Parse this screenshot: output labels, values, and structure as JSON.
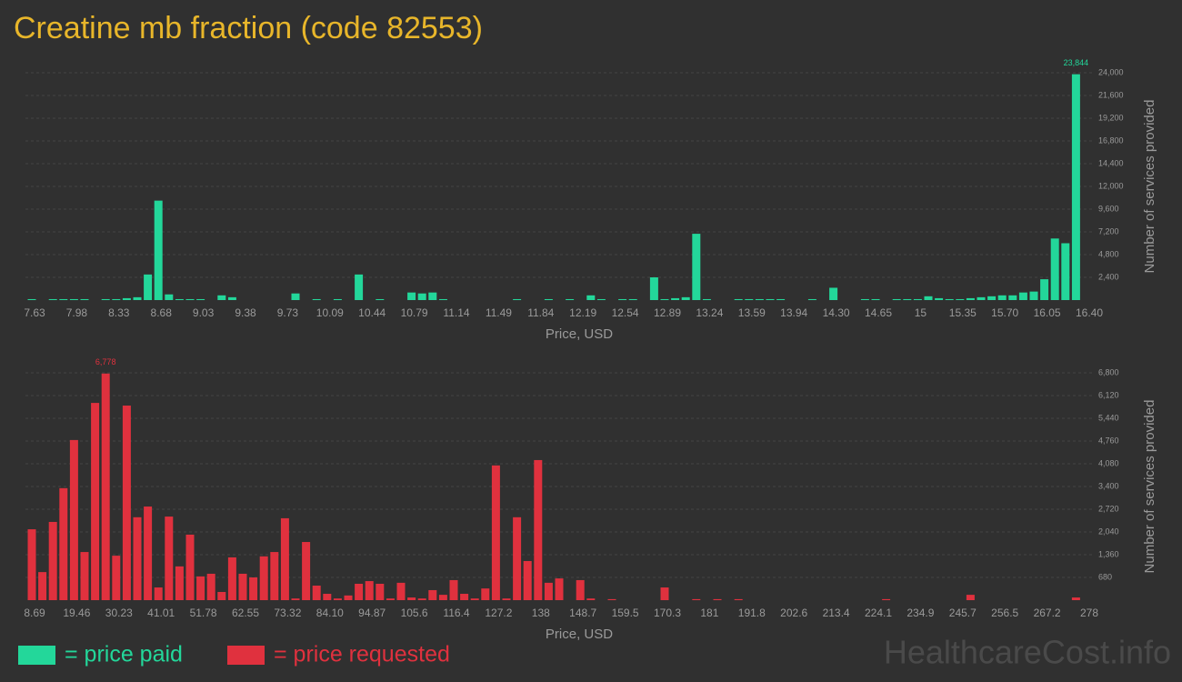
{
  "title": "Creatine mb fraction (code 82553)",
  "watermark": "HealthcareCost.info",
  "chart_data": [
    {
      "type": "bar",
      "x_label": "Price, USD",
      "y_label": "Number of services provided",
      "grid": true,
      "categories": [
        "7.63",
        null,
        null,
        null,
        "7.98",
        null,
        null,
        null,
        "8.33",
        null,
        null,
        null,
        "8.68",
        null,
        null,
        null,
        "9.03",
        null,
        null,
        null,
        "9.38",
        null,
        null,
        null,
        "9.73",
        null,
        null,
        null,
        "10.09",
        null,
        null,
        null,
        "10.44",
        null,
        null,
        null,
        "10.79",
        null,
        null,
        null,
        "11.14",
        null,
        null,
        null,
        "11.49",
        null,
        null,
        null,
        "11.84",
        null,
        null,
        null,
        "12.19",
        null,
        null,
        null,
        "12.54",
        null,
        null,
        null,
        "12.89",
        null,
        null,
        null,
        "13.24",
        null,
        null,
        null,
        "13.59",
        null,
        null,
        null,
        "13.94",
        null,
        null,
        null,
        "14.30",
        null,
        null,
        null,
        "14.65",
        null,
        null,
        null,
        "15",
        null,
        null,
        null,
        "15.35",
        null,
        null,
        null,
        "15.70",
        null,
        null,
        null,
        "16.05",
        null,
        null,
        null,
        "16.40"
      ],
      "series": [
        {
          "name": "= price paid",
          "color": "#23d79a",
          "values": [
            100,
            0,
            100,
            100,
            100,
            100,
            0,
            100,
            100,
            200,
            300,
            2700,
            10500,
            600,
            100,
            100,
            100,
            0,
            500,
            300,
            0,
            0,
            0,
            0,
            0,
            700,
            0,
            100,
            0,
            100,
            0,
            2700,
            0,
            100,
            0,
            0,
            800,
            700,
            800,
            100,
            0,
            0,
            0,
            0,
            0,
            0,
            100,
            0,
            0,
            100,
            0,
            100,
            0,
            500,
            100,
            0,
            100,
            100,
            0,
            2400,
            100,
            200,
            300,
            7000,
            100,
            0,
            0,
            100,
            100,
            100,
            100,
            100,
            0,
            0,
            100,
            0,
            1300,
            0,
            0,
            100,
            100,
            0,
            100,
            100,
            100,
            400,
            200,
            100,
            100,
            200,
            300,
            400,
            500,
            500,
            800,
            900,
            2200,
            6500,
            6000,
            23844,
            0
          ],
          "value_labels": [
            null,
            null,
            null,
            null,
            null,
            null,
            null,
            null,
            null,
            null,
            null,
            null,
            null,
            null,
            null,
            null,
            null,
            null,
            null,
            null,
            null,
            null,
            null,
            null,
            null,
            null,
            null,
            null,
            null,
            null,
            null,
            null,
            null,
            null,
            null,
            null,
            null,
            null,
            null,
            null,
            null,
            null,
            null,
            null,
            null,
            null,
            null,
            null,
            null,
            null,
            null,
            null,
            null,
            null,
            null,
            null,
            null,
            null,
            null,
            null,
            null,
            null,
            null,
            null,
            null,
            null,
            null,
            null,
            null,
            null,
            null,
            null,
            null,
            null,
            null,
            null,
            null,
            null,
            null,
            null,
            null,
            null,
            null,
            null,
            null,
            null,
            null,
            null,
            null,
            null,
            null,
            null,
            null,
            null,
            null,
            null,
            null,
            null,
            null,
            "23,844",
            null
          ]
        }
      ],
      "ylim": [
        0,
        24000
      ],
      "yticks": [
        {
          "value": 2400,
          "label": "2,400"
        },
        {
          "value": 4800,
          "label": "4,800"
        },
        {
          "value": 7200,
          "label": "7,200"
        },
        {
          "value": 9600,
          "label": "9,600"
        },
        {
          "value": 12000,
          "label": "12,000"
        },
        {
          "value": 14400,
          "label": "14,400"
        },
        {
          "value": 16800,
          "label": "16,800"
        },
        {
          "value": 19200,
          "label": "19,200"
        },
        {
          "value": 21600,
          "label": "21,600"
        },
        {
          "value": 24000,
          "label": "24,000"
        }
      ]
    },
    {
      "type": "bar",
      "x_label": "Price, USD",
      "y_label": "Number of services provided",
      "grid": true,
      "categories": [
        "8.69",
        null,
        null,
        null,
        "19.46",
        null,
        null,
        null,
        "30.23",
        null,
        null,
        null,
        "41.01",
        null,
        null,
        null,
        "51.78",
        null,
        null,
        null,
        "62.55",
        null,
        null,
        null,
        "73.32",
        null,
        null,
        null,
        "84.10",
        null,
        null,
        null,
        "94.87",
        null,
        null,
        null,
        "105.6",
        null,
        null,
        null,
        "116.4",
        null,
        null,
        null,
        "127.2",
        null,
        null,
        null,
        "138",
        null,
        null,
        null,
        "148.7",
        null,
        null,
        null,
        "159.5",
        null,
        null,
        null,
        "170.3",
        null,
        null,
        null,
        "181",
        null,
        null,
        null,
        "191.8",
        null,
        null,
        null,
        "202.6",
        null,
        null,
        null,
        "213.4",
        null,
        null,
        null,
        "224.1",
        null,
        null,
        null,
        "234.9",
        null,
        null,
        null,
        "245.7",
        null,
        null,
        null,
        "256.5",
        null,
        null,
        null,
        "267.2",
        null,
        null,
        null,
        "278"
      ],
      "series": [
        {
          "name": "= price requested",
          "color": "#e0313e",
          "values": [
            2120,
            840,
            2340,
            3350,
            4790,
            1440,
            5900,
            6778,
            1330,
            5820,
            2480,
            2800,
            380,
            2500,
            1010,
            1960,
            710,
            790,
            245,
            1280,
            790,
            680,
            1310,
            1440,
            2450,
            50,
            1740,
            435,
            190,
            50,
            140,
            490,
            570,
            490,
            50,
            520,
            80,
            50,
            300,
            160,
            600,
            190,
            50,
            350,
            4030,
            50,
            2480,
            1170,
            4190,
            520,
            650,
            0,
            600,
            50,
            0,
            30,
            0,
            0,
            0,
            0,
            380,
            0,
            0,
            30,
            0,
            30,
            0,
            30,
            0,
            0,
            0,
            0,
            0,
            0,
            0,
            0,
            0,
            0,
            0,
            0,
            0,
            30,
            0,
            0,
            0,
            0,
            0,
            0,
            0,
            160,
            0,
            0,
            0,
            0,
            0,
            0,
            0,
            0,
            0,
            80,
            0
          ],
          "value_labels": [
            null,
            null,
            null,
            null,
            null,
            null,
            null,
            "6,778",
            null,
            null,
            null,
            null,
            null,
            null,
            null,
            null,
            null,
            null,
            null,
            null,
            null,
            null,
            null,
            null,
            null,
            null,
            null,
            null,
            null,
            null,
            null,
            null,
            null,
            null,
            null,
            null,
            null,
            null,
            null,
            null,
            null,
            null,
            null,
            null,
            null,
            null,
            null,
            null,
            null,
            null,
            null,
            null,
            null,
            null,
            null,
            null,
            null,
            null,
            null,
            null,
            null,
            null,
            null,
            null,
            null,
            null,
            null,
            null,
            null,
            null,
            null,
            null,
            null,
            null,
            null,
            null,
            null,
            null,
            null,
            null,
            null,
            null,
            null,
            null,
            null,
            null,
            null,
            null,
            null,
            null,
            null,
            null,
            null,
            null,
            null,
            null,
            null,
            null,
            null,
            null,
            null
          ]
        }
      ],
      "ylim": [
        0,
        6800
      ],
      "yticks": [
        680,
        {
          "value": 1360,
          "label": "1,360"
        },
        {
          "value": 2040,
          "label": "2,040"
        },
        {
          "value": 2720,
          "label": "2,720"
        },
        {
          "value": 3400,
          "label": "3,400"
        },
        {
          "value": 4080,
          "label": "4,080"
        },
        {
          "value": 4760,
          "label": "4,760"
        },
        {
          "value": 5440,
          "label": "5,440"
        },
        {
          "value": 6120,
          "label": "6,120"
        },
        {
          "value": 6800,
          "label": "6,800"
        }
      ]
    }
  ]
}
